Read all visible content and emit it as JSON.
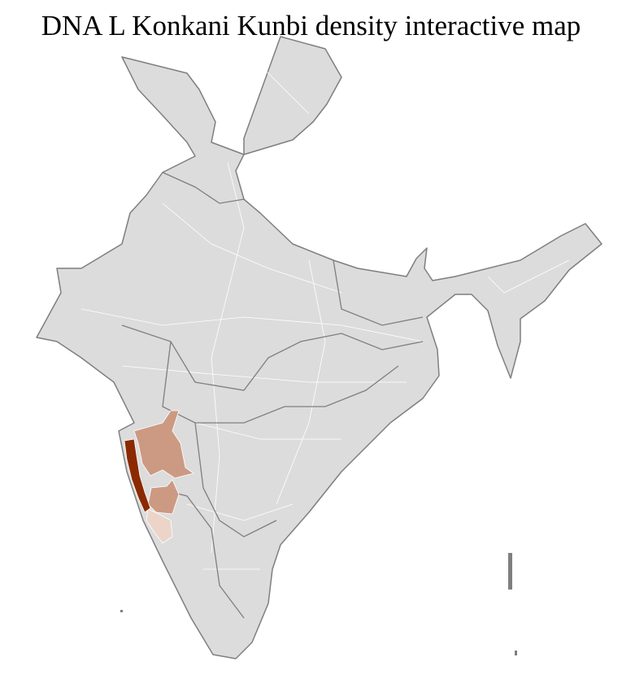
{
  "title": "DNA L Konkani Kunbi density interactive map",
  "colors": {
    "land": "#dcdcdc",
    "border": "#7f7f7f",
    "district_border": "#ffffff",
    "density_high": "#8b2a00",
    "density_medium": "#cc9a83",
    "density_low": "#ecd4c9"
  }
}
